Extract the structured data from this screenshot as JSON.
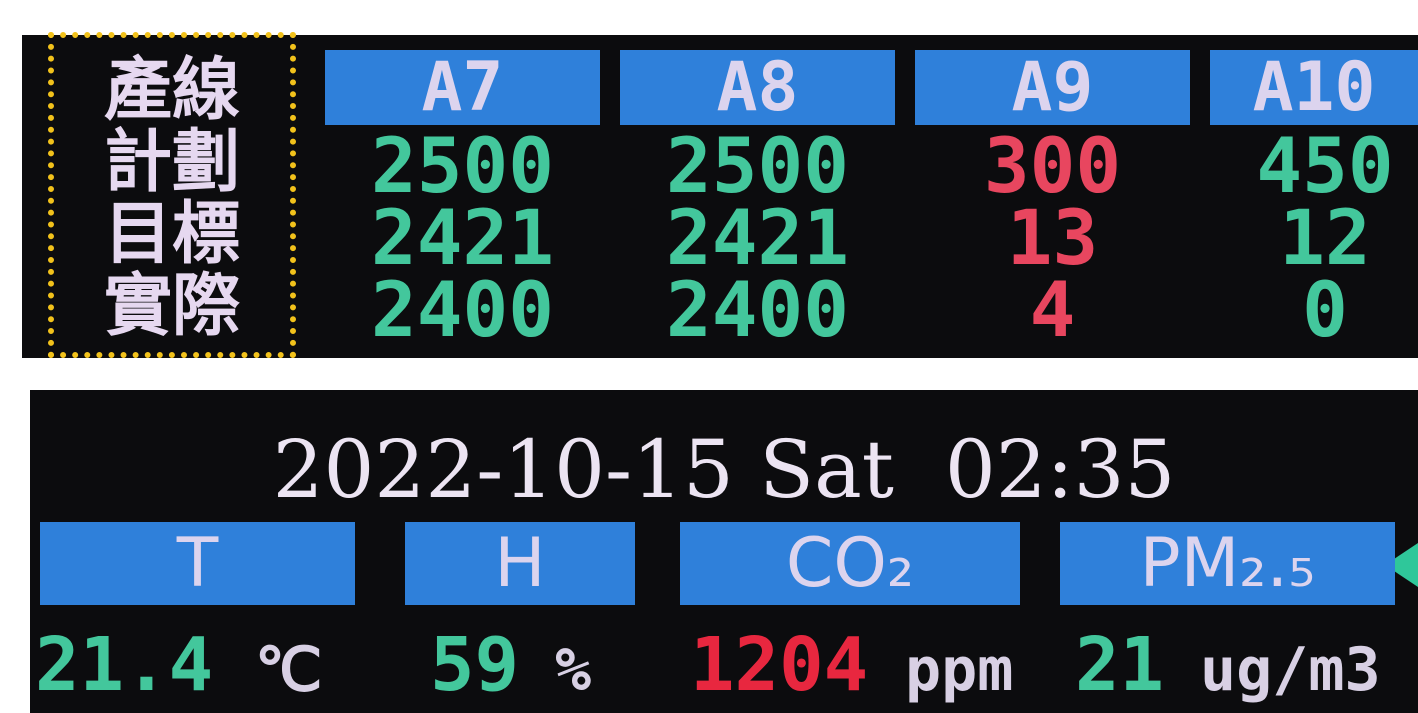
{
  "top_panel": {
    "row_labels": [
      "產線",
      "計劃",
      "目標",
      "實際"
    ],
    "columns": [
      {
        "header": "A7",
        "values": [
          2500,
          2421,
          2400
        ],
        "color": "#43c79c"
      },
      {
        "header": "A8",
        "values": [
          2500,
          2421,
          2400
        ],
        "color": "#43c79c"
      },
      {
        "header": "A9",
        "values": [
          300,
          13,
          4
        ],
        "color": "#e8465f"
      },
      {
        "header": "A10",
        "values": [
          450,
          12,
          0
        ],
        "color": "#43c79c"
      }
    ]
  },
  "bottom_panel": {
    "datetime": "2022-10-15 Sat  02:35",
    "sensors": [
      {
        "label": "T",
        "value": 21.4,
        "unit": "℃",
        "color": "#43c79c"
      },
      {
        "label": "H",
        "value": 59,
        "unit": "%",
        "color": "#43c79c"
      },
      {
        "label": "CO₂",
        "value": 1204,
        "unit": "ppm",
        "color": "#e8273f"
      },
      {
        "label": "PM₂.₅",
        "value": 21,
        "unit": "ug/m3",
        "color": "#43c79c"
      }
    ]
  }
}
